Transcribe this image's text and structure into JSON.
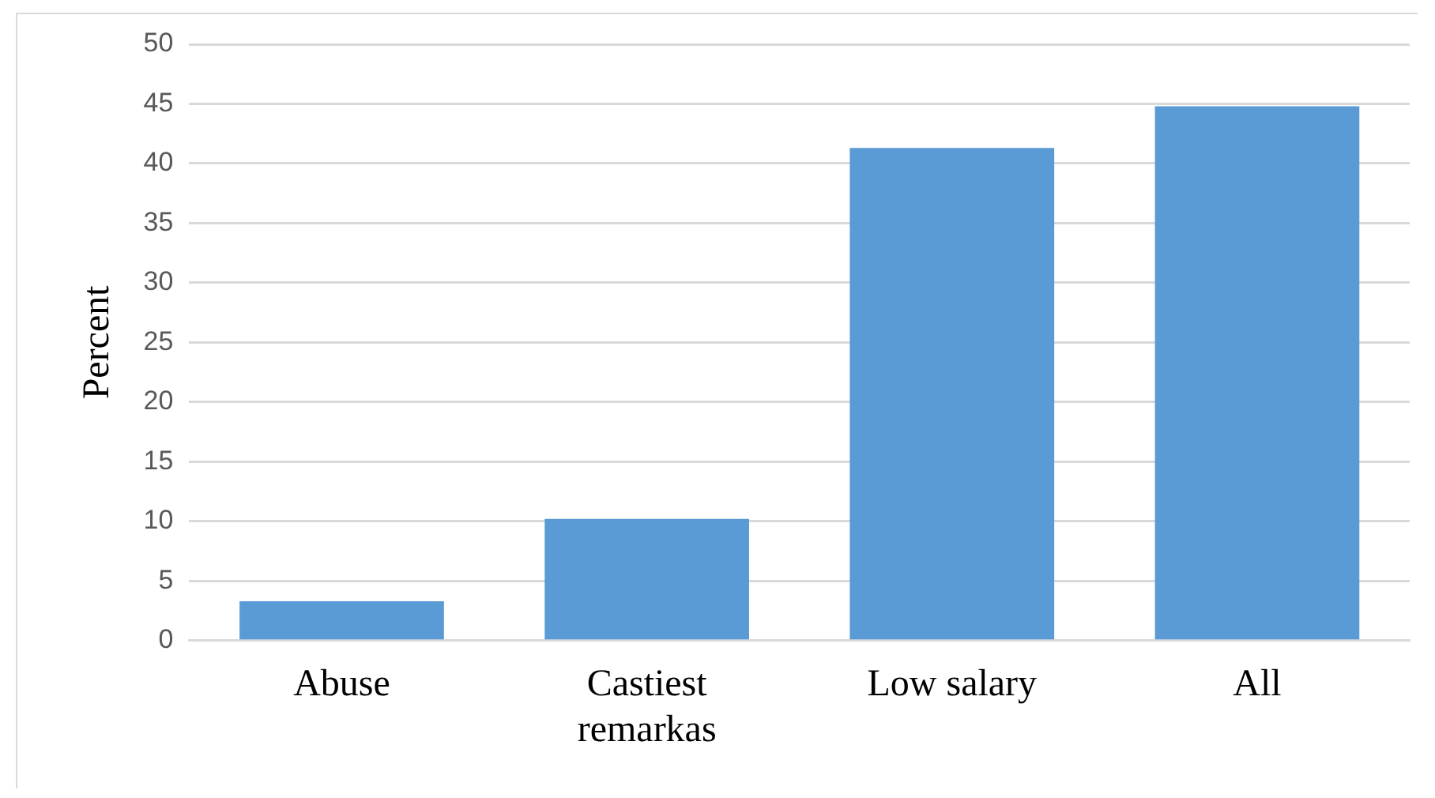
{
  "chart_data": {
    "type": "bar",
    "ylabel": "Percent",
    "categories": [
      "Abuse",
      "Castiest remarkas",
      "Low salary",
      "All"
    ],
    "values": [
      3.3,
      10.2,
      41.3,
      44.8
    ],
    "color": "#5b9bd5",
    "ylim": [
      0,
      50
    ],
    "yticks": [
      0,
      5,
      10,
      15,
      20,
      25,
      30,
      35,
      40,
      45,
      50
    ],
    "grid": "y"
  }
}
